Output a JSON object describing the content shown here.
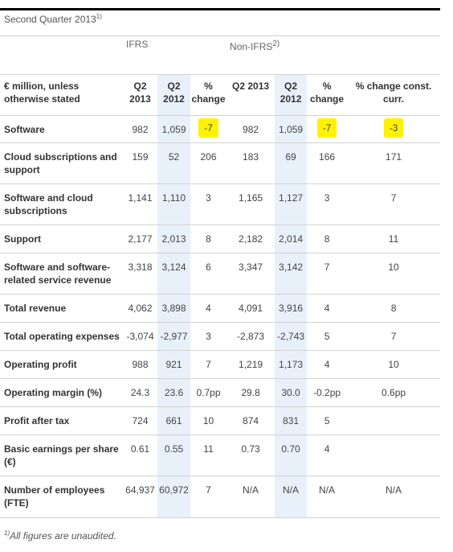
{
  "title": {
    "text": "Second Quarter 2013",
    "sup": "1)"
  },
  "groups": {
    "ifrs": "IFRS",
    "non_ifrs": "Non-IFRS",
    "non_ifrs_sup": "2)"
  },
  "header": {
    "label": "€ million, unless otherwise stated",
    "cols": [
      "Q2 2013",
      "Q2 2012",
      "% change",
      "Q2 2013",
      "Q2 2012",
      "% change",
      "% change const. curr."
    ]
  },
  "rows": [
    {
      "label": "Software",
      "values": [
        "982",
        "1,059",
        "-7",
        "982",
        "1,059",
        "-7",
        "-3"
      ]
    },
    {
      "label": "Cloud subscriptions and support",
      "values": [
        "159",
        "52",
        "206",
        "183",
        "69",
        "166",
        "171"
      ]
    },
    {
      "label": "Software and cloud subscriptions",
      "values": [
        "1,141",
        "1,110",
        "3",
        "1,165",
        "1,127",
        "3",
        "7"
      ]
    },
    {
      "label": "Support",
      "values": [
        "2,177",
        "2,013",
        "8",
        "2,182",
        "2,014",
        "8",
        "11"
      ]
    },
    {
      "label": "Software and software-related service revenue",
      "values": [
        "3,318",
        "3,124",
        "6",
        "3,347",
        "3,142",
        "7",
        "10"
      ]
    },
    {
      "label": "Total revenue",
      "values": [
        "4,062",
        "3,898",
        "4",
        "4,091",
        "3,916",
        "4",
        "8"
      ]
    },
    {
      "label": "Total operating expenses",
      "values": [
        "-3,074",
        "-2,977",
        "3",
        "-2,873",
        "-2,743",
        "5",
        "7"
      ]
    },
    {
      "label": "Operating profit",
      "values": [
        "988",
        "921",
        "7",
        "1,219",
        "1,173",
        "4",
        "10"
      ]
    },
    {
      "label": "Operating margin (%)",
      "values": [
        "24.3",
        "23.6",
        "0.7pp",
        "29.8",
        "30.0",
        "-0.2pp",
        "0.6pp"
      ]
    },
    {
      "label": "Profit after tax",
      "values": [
        "724",
        "661",
        "10",
        "874",
        "831",
        "5",
        ""
      ]
    },
    {
      "label": "Basic earnings per share (€)",
      "values": [
        "0.61",
        "0.55",
        "11",
        "0.73",
        "0.70",
        "4",
        ""
      ]
    },
    {
      "label": "Number of employees (FTE)",
      "values": [
        "64,937",
        "60,972",
        "7",
        "N/A",
        "N/A",
        "N/A",
        "N/A"
      ]
    }
  ],
  "footnote": {
    "sup": "1)",
    "text": "All figures are unaudited."
  },
  "colors": {
    "highlight_column": "#e8f1fa",
    "marker": "#fff200"
  }
}
